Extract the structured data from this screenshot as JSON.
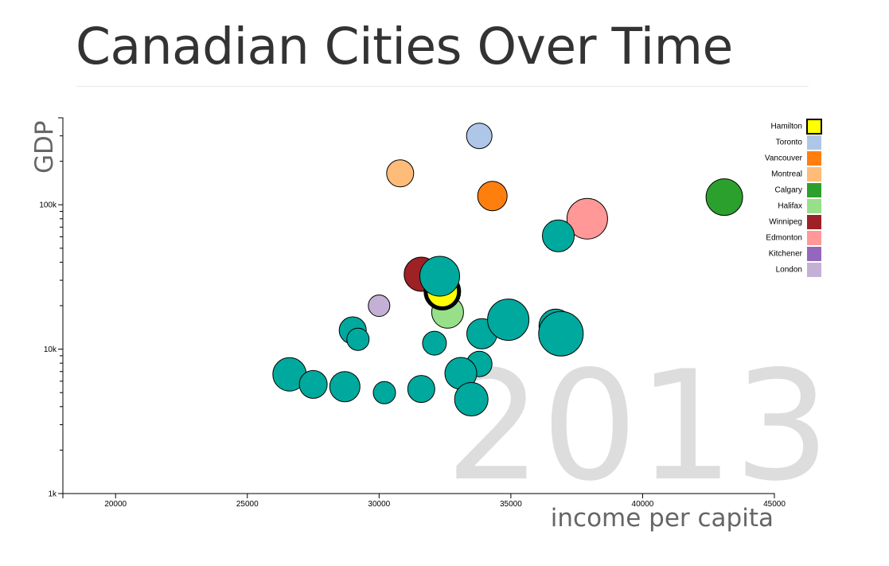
{
  "title": "Canadian Cities Over Time",
  "chart_data": {
    "type": "scatter",
    "title": "Canadian Cities Over Time",
    "year": "2013",
    "xlabel": "income per capita",
    "ylabel": "GDP",
    "xlim": [
      18000,
      45000
    ],
    "ylim": [
      1000,
      400000
    ],
    "yscale": "log",
    "xticks": [
      20000,
      25000,
      30000,
      35000,
      40000,
      45000
    ],
    "yticks": [
      {
        "value": 1000,
        "label": "1k"
      },
      {
        "value": 10000,
        "label": "10k"
      },
      {
        "value": 100000,
        "label": "100k"
      }
    ],
    "legend_position": "top-right",
    "legend": [
      {
        "name": "Hamilton",
        "color": "#ffff00",
        "highlight": true
      },
      {
        "name": "Toronto",
        "color": "#aec7e8"
      },
      {
        "name": "Vancouver",
        "color": "#ff7f0e"
      },
      {
        "name": "Montreal",
        "color": "#ffbb78"
      },
      {
        "name": "Calgary",
        "color": "#2ca02c"
      },
      {
        "name": "Halifax",
        "color": "#98df8a"
      },
      {
        "name": "Winnipeg",
        "color": "#9e2125"
      },
      {
        "name": "Edmonton",
        "color": "#ff9896"
      },
      {
        "name": "Kitchener",
        "color": "#9467bd"
      },
      {
        "name": "London",
        "color": "#c5b0d5"
      }
    ],
    "other_color": "#00a99d",
    "points": [
      {
        "city": "Toronto",
        "x": 33800,
        "y": 300000,
        "size": 16,
        "color": "#aec7e8"
      },
      {
        "city": "Montreal",
        "x": 30800,
        "y": 165000,
        "size": 17,
        "color": "#ffbb78"
      },
      {
        "city": "Vancouver",
        "x": 34300,
        "y": 115000,
        "size": 18.5,
        "color": "#ff7f0e"
      },
      {
        "city": "Calgary",
        "x": 43100,
        "y": 113000,
        "size": 23,
        "color": "#2ca02c"
      },
      {
        "city": "Edmonton",
        "x": 37900,
        "y": 80000,
        "size": 25.5,
        "color": "#ff9896"
      },
      {
        "city": "",
        "x": 36800,
        "y": 61000,
        "size": 20,
        "color": "#00a99d"
      },
      {
        "city": "Winnipeg",
        "x": 31600,
        "y": 33000,
        "size": 21.5,
        "color": "#9e2125"
      },
      {
        "city": "London",
        "x": 30000,
        "y": 20000,
        "size": 13.5,
        "color": "#c5b0d5"
      },
      {
        "city": "Halifax",
        "x": 32600,
        "y": 18000,
        "size": 20,
        "color": "#98df8a"
      },
      {
        "city": "Hamilton",
        "x": 32400,
        "y": 25000,
        "size": 21,
        "color": "#ffff00",
        "highlight": true
      },
      {
        "city": "",
        "x": 32300,
        "y": 32000,
        "size": 25,
        "color": "#00a99d"
      },
      {
        "city": "",
        "x": 29000,
        "y": 13500,
        "size": 17,
        "color": "#00a99d"
      },
      {
        "city": "",
        "x": 29200,
        "y": 11700,
        "size": 14,
        "color": "#00a99d"
      },
      {
        "city": "",
        "x": 32100,
        "y": 11000,
        "size": 15,
        "color": "#00a99d"
      },
      {
        "city": "",
        "x": 33900,
        "y": 12800,
        "size": 19,
        "color": "#00a99d"
      },
      {
        "city": "",
        "x": 34900,
        "y": 16000,
        "size": 26,
        "color": "#00a99d"
      },
      {
        "city": "",
        "x": 36700,
        "y": 14500,
        "size": 21,
        "color": "#00a99d"
      },
      {
        "city": "",
        "x": 36900,
        "y": 12800,
        "size": 28,
        "color": "#00a99d"
      },
      {
        "city": "",
        "x": 33800,
        "y": 7900,
        "size": 16,
        "color": "#00a99d"
      },
      {
        "city": "",
        "x": 33100,
        "y": 6800,
        "size": 20,
        "color": "#00a99d"
      },
      {
        "city": "",
        "x": 33500,
        "y": 4500,
        "size": 21,
        "color": "#00a99d"
      },
      {
        "city": "",
        "x": 26600,
        "y": 6700,
        "size": 21,
        "color": "#00a99d"
      },
      {
        "city": "",
        "x": 27500,
        "y": 5700,
        "size": 17.5,
        "color": "#00a99d"
      },
      {
        "city": "",
        "x": 28700,
        "y": 5500,
        "size": 19,
        "color": "#00a99d"
      },
      {
        "city": "",
        "x": 30200,
        "y": 5000,
        "size": 14,
        "color": "#00a99d"
      },
      {
        "city": "",
        "x": 31600,
        "y": 5300,
        "size": 17,
        "color": "#00a99d"
      }
    ]
  }
}
